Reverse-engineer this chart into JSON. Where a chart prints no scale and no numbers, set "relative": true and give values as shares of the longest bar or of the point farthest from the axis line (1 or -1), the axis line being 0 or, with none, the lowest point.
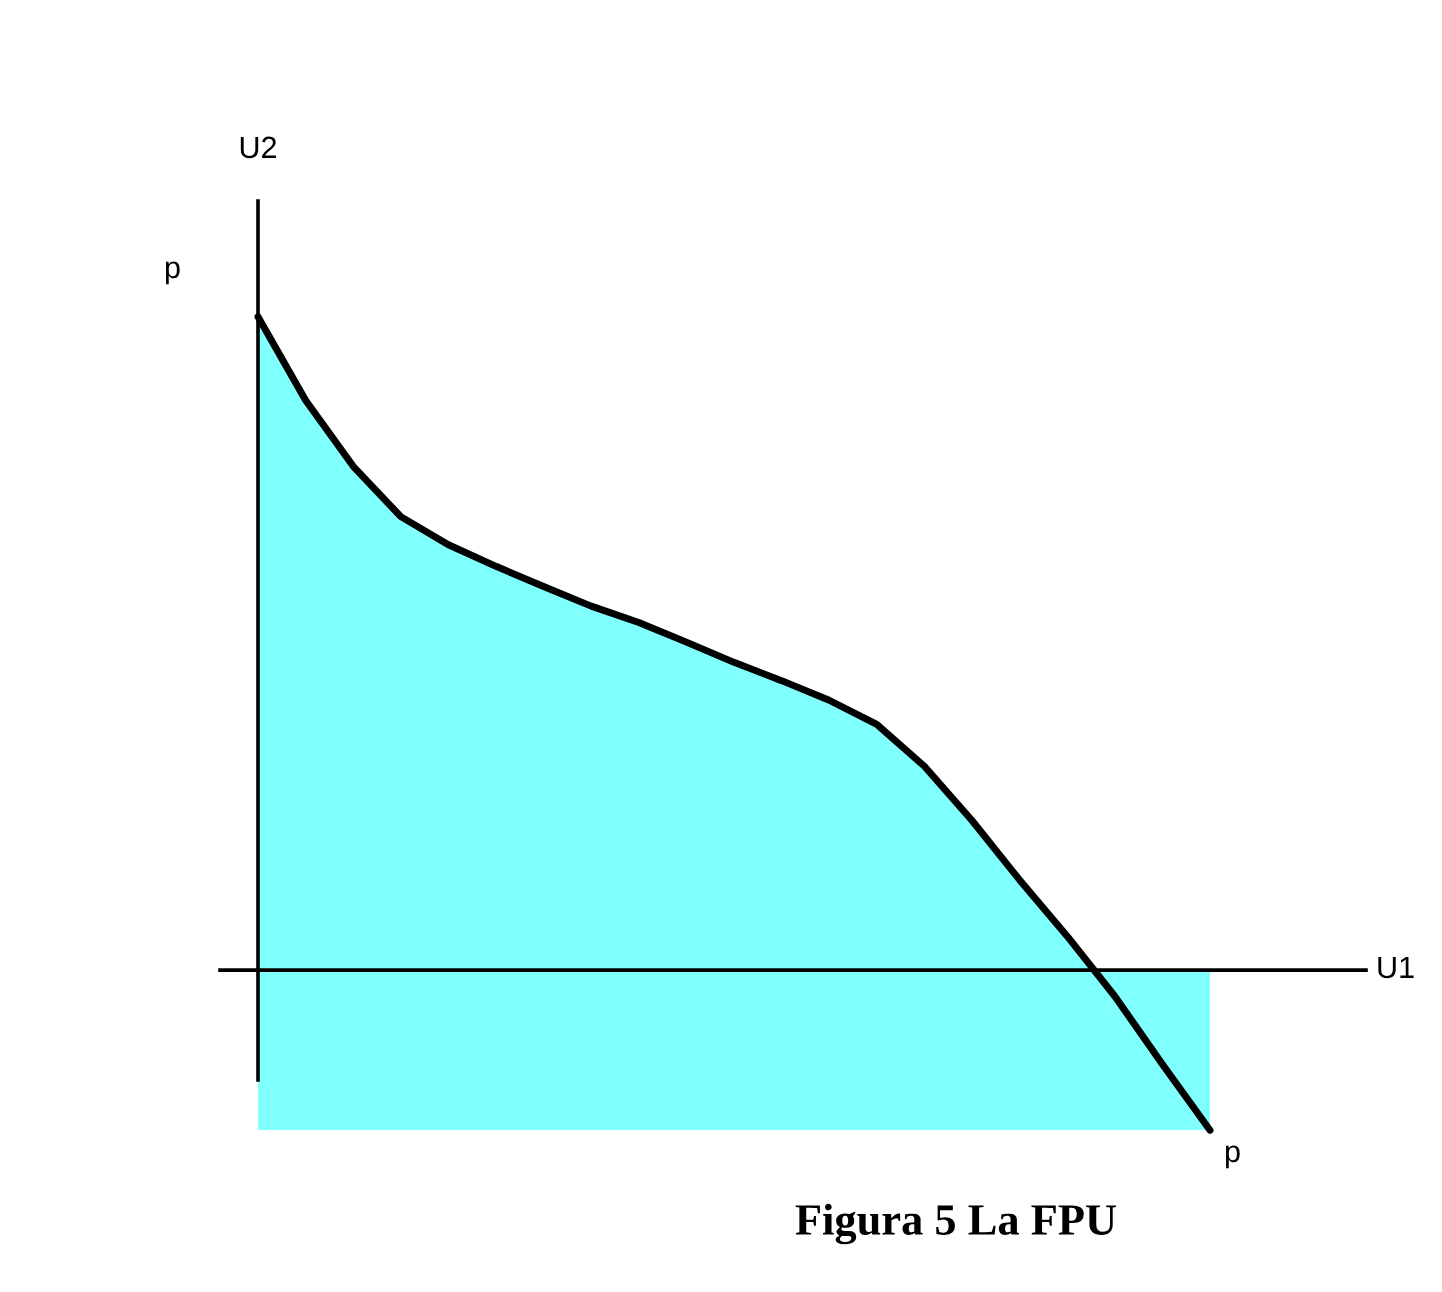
{
  "chart_data": {
    "type": "area",
    "title": "Figura 5 La FPU",
    "xlabel": "U1",
    "annotations": [
      "U2",
      "p",
      "p"
    ],
    "relative": true,
    "bands": [
      {
        "axis": "y",
        "from": -0.245,
        "to": 0,
        "color": "#80ffff"
      }
    ],
    "categories": [
      null,
      null,
      null,
      null,
      null,
      null,
      null,
      null,
      null,
      null,
      null,
      null,
      null,
      null,
      null,
      null,
      null,
      null,
      null,
      null,
      null
    ],
    "series": [
      {
        "color": "#80ffff",
        "values": [
          1.0,
          0.872,
          0.771,
          0.694,
          0.651,
          0.618,
          0.587,
          0.557,
          0.532,
          0.502,
          0.471,
          0.443,
          0.413,
          0.376,
          0.312,
          0.229,
          0.138,
          0.052,
          -0.04,
          -0.144,
          -0.245
        ]
      }
    ]
  }
}
